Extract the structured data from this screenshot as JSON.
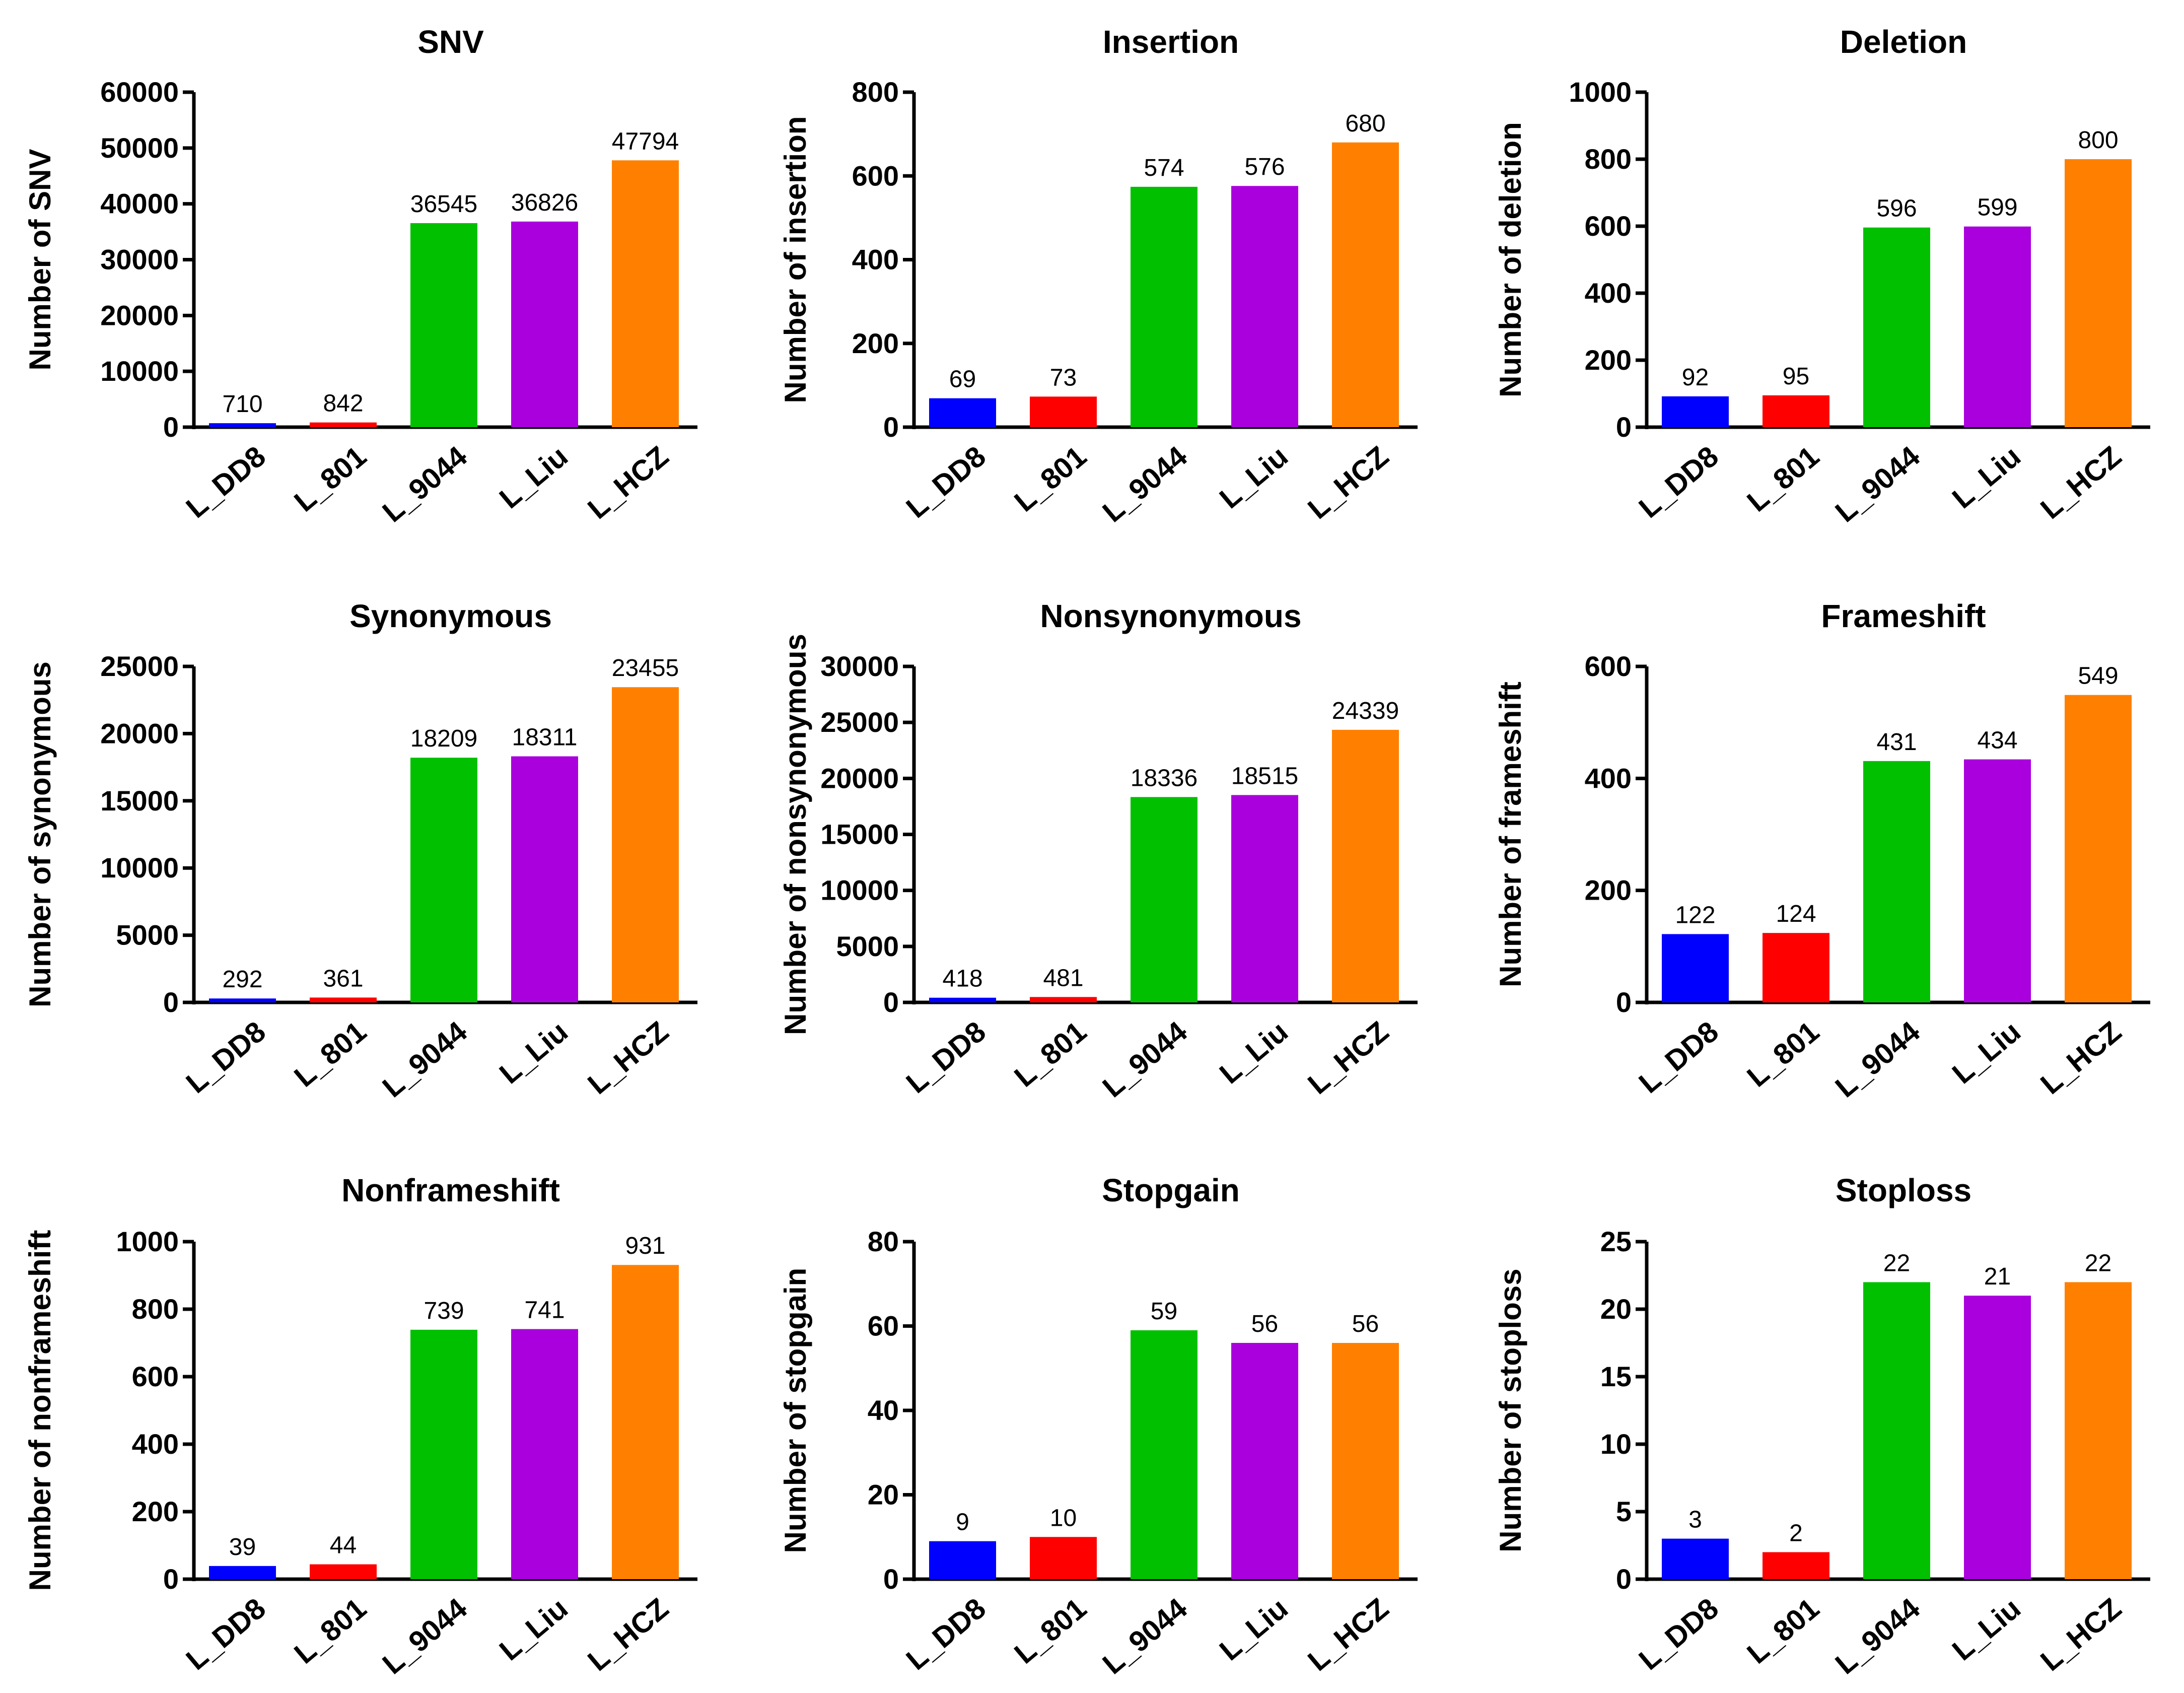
{
  "colors": {
    "L_DD8": "#0000ff",
    "L_801": "#ff0000",
    "L_9044": "#00c000",
    "L_Liu": "#aa00dd",
    "L_HCZ": "#ff8000",
    "axis": "#000000"
  },
  "chart_data": [
    {
      "type": "bar",
      "title": "SNV",
      "ylabel": "Number of SNV",
      "categories": [
        "L_DD8",
        "L_801",
        "L_9044",
        "L_Liu",
        "L_HCZ"
      ],
      "values": [
        710,
        842,
        36545,
        36826,
        47794
      ],
      "ylim": [
        0,
        60000
      ],
      "yticks": [
        "0",
        "10000",
        "20000",
        "30000",
        "40000",
        "50000",
        "60000"
      ]
    },
    {
      "type": "bar",
      "title": "Insertion",
      "ylabel": "Number of insertion",
      "categories": [
        "L_DD8",
        "L_801",
        "L_9044",
        "L_Liu",
        "L_HCZ"
      ],
      "values": [
        69,
        73,
        574,
        576,
        680
      ],
      "ylim": [
        0,
        800
      ],
      "yticks": [
        "0",
        "200",
        "400",
        "600",
        "800"
      ]
    },
    {
      "type": "bar",
      "title": "Deletion",
      "ylabel": "Number of deletion",
      "categories": [
        "L_DD8",
        "L_801",
        "L_9044",
        "L_Liu",
        "L_HCZ"
      ],
      "values": [
        92,
        95,
        596,
        599,
        800
      ],
      "ylim": [
        0,
        1000
      ],
      "yticks": [
        "0",
        "200",
        "400",
        "600",
        "800",
        "1000"
      ]
    },
    {
      "type": "bar",
      "title": "Synonymous",
      "ylabel": "Number of synonymous",
      "categories": [
        "L_DD8",
        "L_801",
        "L_9044",
        "L_Liu",
        "L_HCZ"
      ],
      "values": [
        292,
        361,
        18209,
        18311,
        23455
      ],
      "ylim": [
        0,
        25000
      ],
      "yticks": [
        "0",
        "5000",
        "10000",
        "15000",
        "20000",
        "25000"
      ]
    },
    {
      "type": "bar",
      "title": "Nonsynonymous",
      "ylabel": "Number of nonsynonymous",
      "categories": [
        "L_DD8",
        "L_801",
        "L_9044",
        "L_Liu",
        "L_HCZ"
      ],
      "values": [
        418,
        481,
        18336,
        18515,
        24339
      ],
      "ylim": [
        0,
        30000
      ],
      "yticks": [
        "0",
        "5000",
        "10000",
        "15000",
        "20000",
        "25000",
        "30000"
      ]
    },
    {
      "type": "bar",
      "title": "Frameshift",
      "ylabel": "Number of frameshift",
      "categories": [
        "L_DD8",
        "L_801",
        "L_9044",
        "L_Liu",
        "L_HCZ"
      ],
      "values": [
        122,
        124,
        431,
        434,
        549
      ],
      "ylim": [
        0,
        600
      ],
      "yticks": [
        "0",
        "200",
        "400",
        "600"
      ]
    },
    {
      "type": "bar",
      "title": "Nonframeshift",
      "ylabel": "Number of nonframeshift",
      "categories": [
        "L_DD8",
        "L_801",
        "L_9044",
        "L_Liu",
        "L_HCZ"
      ],
      "values": [
        39,
        44,
        739,
        741,
        931
      ],
      "ylim": [
        0,
        1000
      ],
      "yticks": [
        "0",
        "200",
        "400",
        "600",
        "800",
        "1000"
      ]
    },
    {
      "type": "bar",
      "title": "Stopgain",
      "ylabel": "Number of stopgain",
      "categories": [
        "L_DD8",
        "L_801",
        "L_9044",
        "L_Liu",
        "L_HCZ"
      ],
      "values": [
        9,
        10,
        59,
        56,
        56
      ],
      "ylim": [
        0,
        80
      ],
      "yticks": [
        "0",
        "20",
        "40",
        "60",
        "80"
      ]
    },
    {
      "type": "bar",
      "title": "Stoploss",
      "ylabel": "Number of stoploss",
      "categories": [
        "L_DD8",
        "L_801",
        "L_9044",
        "L_Liu",
        "L_HCZ"
      ],
      "values": [
        3,
        2,
        22,
        21,
        22
      ],
      "ylim": [
        0,
        25
      ],
      "yticks": [
        "0",
        "5",
        "10",
        "15",
        "20",
        "25"
      ]
    }
  ]
}
